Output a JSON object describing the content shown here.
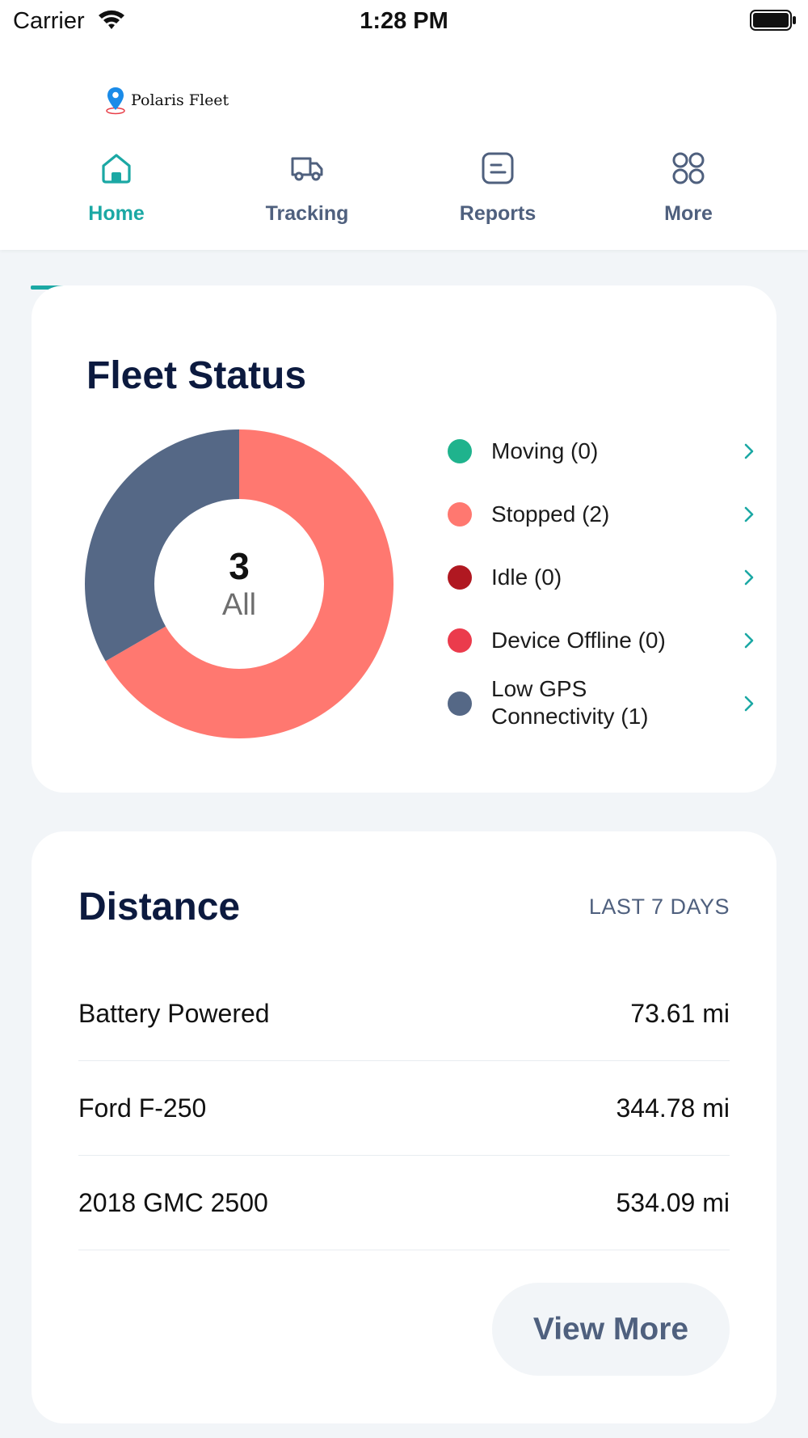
{
  "status_bar": {
    "carrier": "Carrier",
    "time": "1:28 PM"
  },
  "header": {
    "logo_text": "Polaris Fleet"
  },
  "tabs": [
    {
      "label": "Home",
      "icon": "home-icon",
      "active": true
    },
    {
      "label": "Tracking",
      "icon": "truck-icon",
      "active": false
    },
    {
      "label": "Reports",
      "icon": "report-icon",
      "active": false
    },
    {
      "label": "More",
      "icon": "grid-icon",
      "active": false
    }
  ],
  "colors": {
    "accent": "#1ba8a4",
    "nav_text": "#4f607e",
    "moving": "#1fb38d",
    "stopped": "#ff7870",
    "idle": "#b01821",
    "device_offline": "#eb3b4c",
    "low_gps": "#556886"
  },
  "fleet_status": {
    "title": "Fleet Status",
    "total": "3",
    "total_caption": "All",
    "legend": [
      {
        "label": "Moving (0)",
        "color": "#1fb38d"
      },
      {
        "label": "Stopped (2)",
        "color": "#ff7870"
      },
      {
        "label": "Idle (0)",
        "color": "#b01821"
      },
      {
        "label": "Device Offline (0)",
        "color": "#eb3b4c"
      },
      {
        "label": "Low GPS Connectivity (1)",
        "color": "#556886"
      }
    ]
  },
  "chart_data": {
    "type": "pie",
    "categories": [
      "Moving",
      "Stopped",
      "Idle",
      "Device Offline",
      "Low GPS Connectivity"
    ],
    "values": [
      0,
      2,
      0,
      0,
      1
    ],
    "colors": [
      "#1fb38d",
      "#ff7870",
      "#b01821",
      "#eb3b4c",
      "#556886"
    ],
    "donut": true,
    "center_label": "3 All"
  },
  "distance": {
    "title": "Distance",
    "period": "LAST 7 DAYS",
    "rows": [
      {
        "name": "Battery Powered",
        "value": "73.61 mi"
      },
      {
        "name": "Ford F-250",
        "value": "344.78 mi"
      },
      {
        "name": "2018 GMC 2500",
        "value": "534.09 mi"
      }
    ],
    "view_more_label": "View More"
  }
}
